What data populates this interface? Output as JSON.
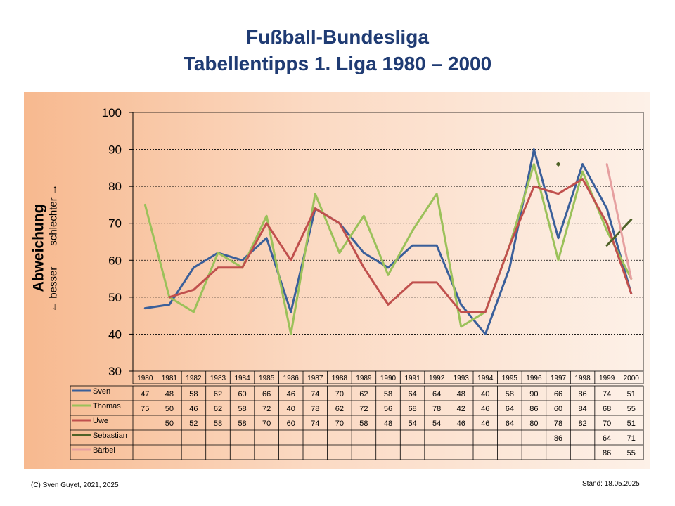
{
  "title_line1": "Fußball-Bundesliga",
  "title_line2": "Tabellentipps 1. Liga 1980 – 2000",
  "ylabel": {
    "main": "Abweichung",
    "better": "← besser",
    "worse": "schlechter →"
  },
  "footer_left": "(C) Sven Guyet, 2021, 2025",
  "footer_right": "Stand: 18.05.2025",
  "colors": {
    "grid": "#000000",
    "panel_start": "#f7b98f",
    "panel_end": "#fdf1e8"
  },
  "chart_data": {
    "type": "line",
    "ylim": [
      30,
      100
    ],
    "yticks": [
      30,
      40,
      50,
      60,
      70,
      80,
      90,
      100
    ],
    "grid": "horizontal dashed",
    "categories": [
      "1980",
      "1981",
      "1982",
      "1983",
      "1984",
      "1985",
      "1986",
      "1987",
      "1988",
      "1989",
      "1990",
      "1991",
      "1992",
      "1993",
      "1994",
      "1995",
      "1996",
      "1997",
      "1998",
      "1999",
      "2000"
    ],
    "series": [
      {
        "name": "Sven",
        "color": "#3a5f9a",
        "values": [
          47,
          48,
          58,
          62,
          60,
          66,
          46,
          74,
          70,
          62,
          58,
          64,
          64,
          48,
          40,
          58,
          90,
          66,
          86,
          74,
          51
        ]
      },
      {
        "name": "Thomas",
        "color": "#9bc15a",
        "values": [
          75,
          50,
          46,
          62,
          58,
          72,
          40,
          78,
          62,
          72,
          56,
          68,
          78,
          42,
          46,
          64,
          86,
          60,
          84,
          68,
          55
        ]
      },
      {
        "name": "Uwe",
        "color": "#c0504d",
        "values": [
          null,
          50,
          52,
          58,
          58,
          70,
          60,
          74,
          70,
          58,
          48,
          54,
          54,
          46,
          46,
          64,
          80,
          78,
          82,
          70,
          51
        ]
      },
      {
        "name": "Sebastian",
        "color": "#4f6228",
        "values": [
          null,
          null,
          null,
          null,
          null,
          null,
          null,
          null,
          null,
          null,
          null,
          null,
          null,
          null,
          null,
          null,
          null,
          86,
          null,
          64,
          71
        ]
      },
      {
        "name": "Bärbel",
        "color": "#e6a0a0",
        "values": [
          null,
          null,
          null,
          null,
          null,
          null,
          null,
          null,
          null,
          null,
          null,
          null,
          null,
          null,
          null,
          null,
          null,
          null,
          null,
          86,
          55
        ]
      }
    ]
  }
}
